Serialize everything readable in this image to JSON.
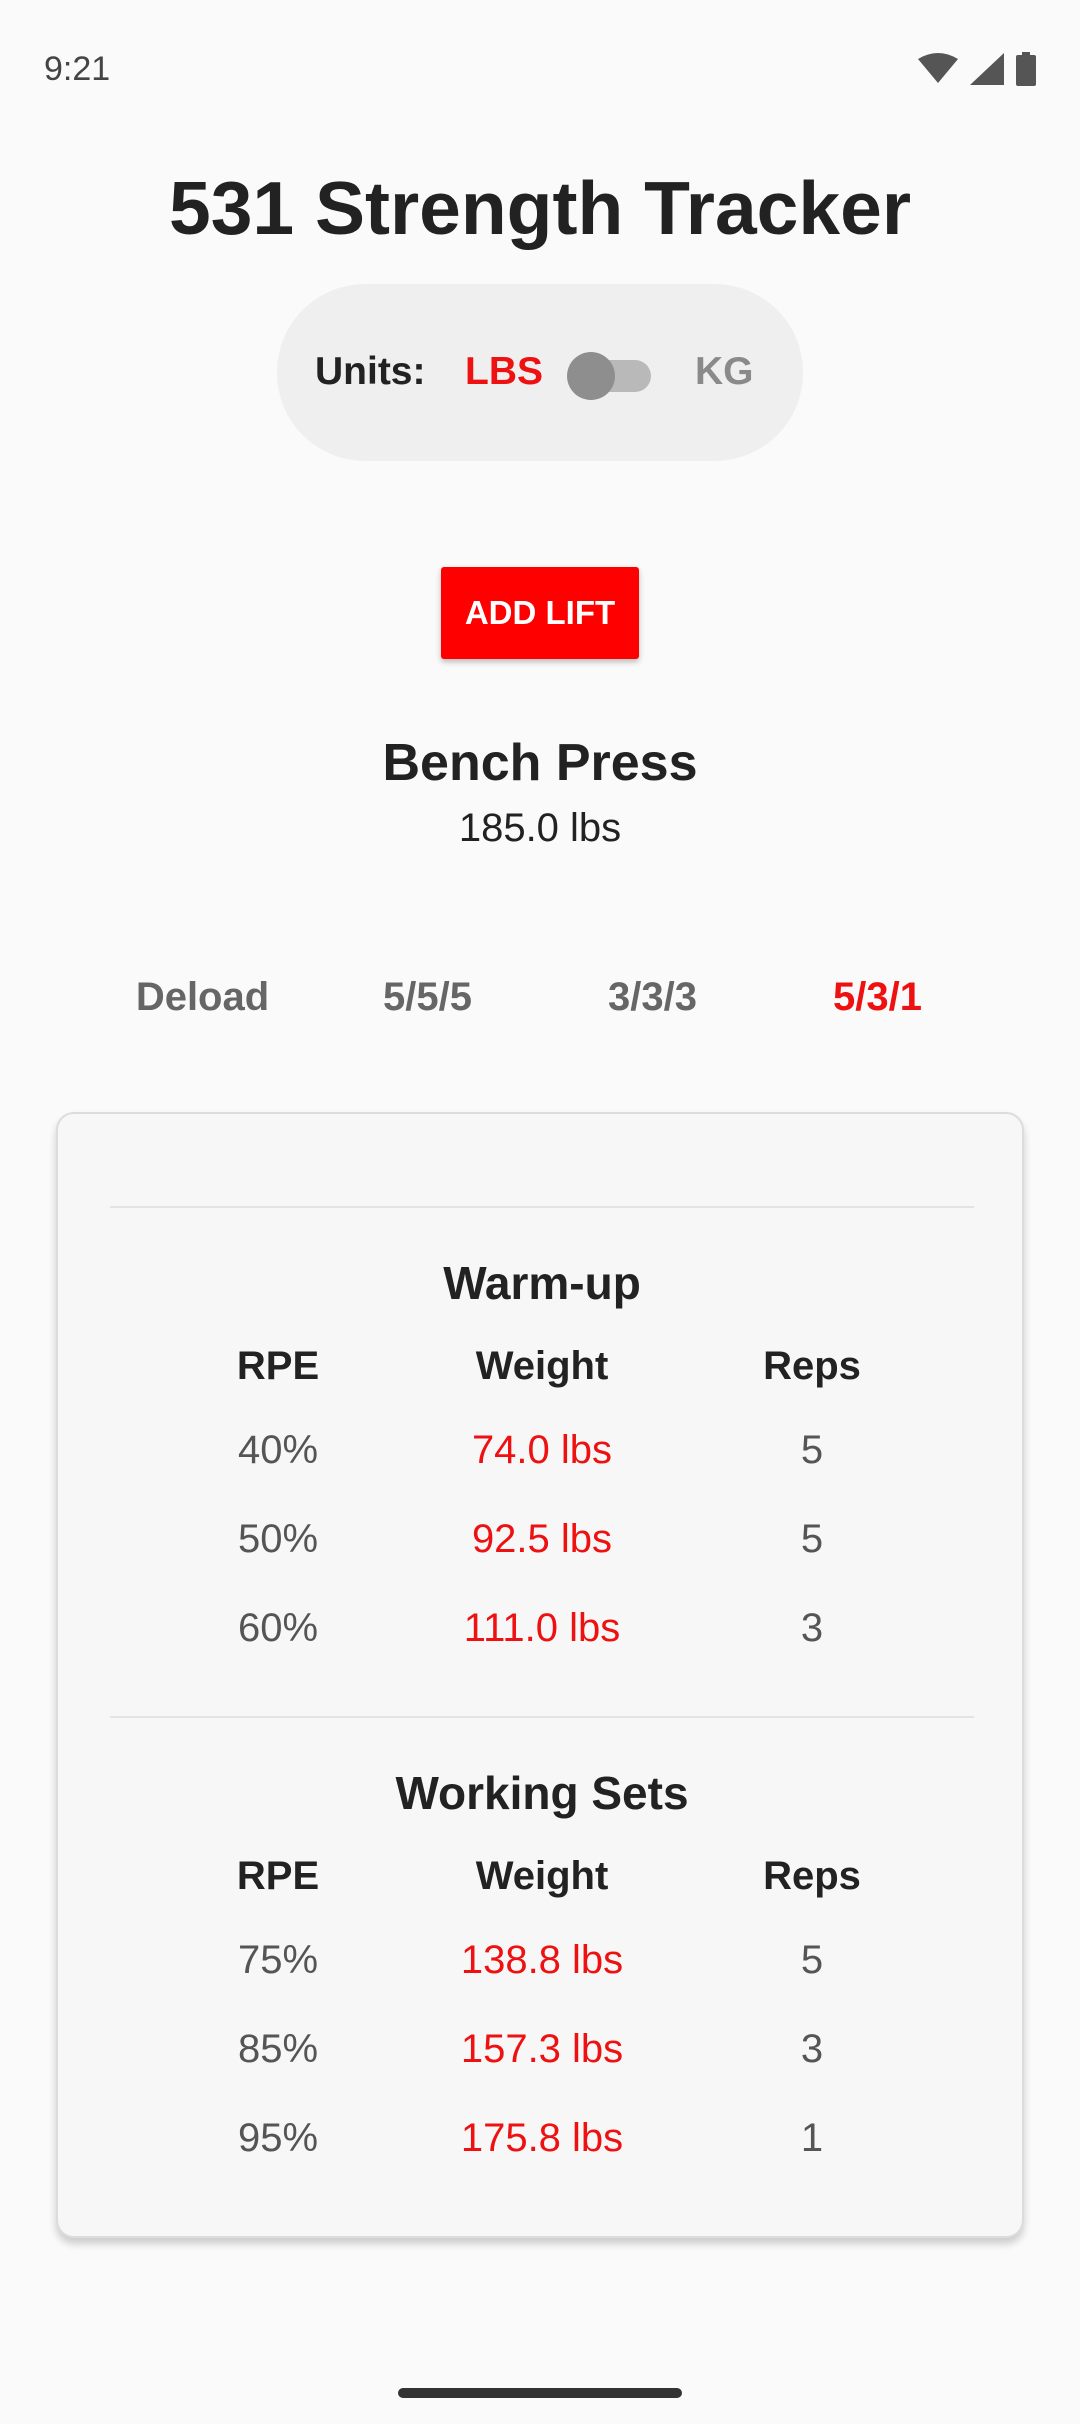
{
  "status_bar": {
    "time": "9:21",
    "icons": [
      "wifi-icon",
      "signal-icon",
      "battery-icon"
    ]
  },
  "app": {
    "title": "531 Strength Tracker"
  },
  "units": {
    "label": "Units:",
    "option_left": "LBS",
    "option_right": "KG",
    "selected": "LBS"
  },
  "actions": {
    "add_lift_label": "ADD LIFT"
  },
  "lift": {
    "name": "Bench Press",
    "training_max": "185.0 lbs"
  },
  "tabs": [
    {
      "label": "Deload",
      "active": false
    },
    {
      "label": "5/5/5",
      "active": false
    },
    {
      "label": "3/3/3",
      "active": false
    },
    {
      "label": "5/3/1",
      "active": true
    }
  ],
  "table_headers": {
    "rpe": "RPE",
    "weight": "Weight",
    "reps": "Reps"
  },
  "sections": [
    {
      "title": "Warm-up",
      "rows": [
        {
          "rpe": "40%",
          "weight": "74.0 lbs",
          "reps": "5"
        },
        {
          "rpe": "50%",
          "weight": "92.5 lbs",
          "reps": "5"
        },
        {
          "rpe": "60%",
          "weight": "111.0 lbs",
          "reps": "3"
        }
      ]
    },
    {
      "title": "Working Sets",
      "rows": [
        {
          "rpe": "75%",
          "weight": "138.8 lbs",
          "reps": "5"
        },
        {
          "rpe": "85%",
          "weight": "157.3 lbs",
          "reps": "3"
        },
        {
          "rpe": "95%",
          "weight": "175.8 lbs",
          "reps": "1"
        }
      ]
    }
  ],
  "colors": {
    "accent": "#ee1111",
    "button": "#ff0000",
    "muted": "#666666"
  }
}
